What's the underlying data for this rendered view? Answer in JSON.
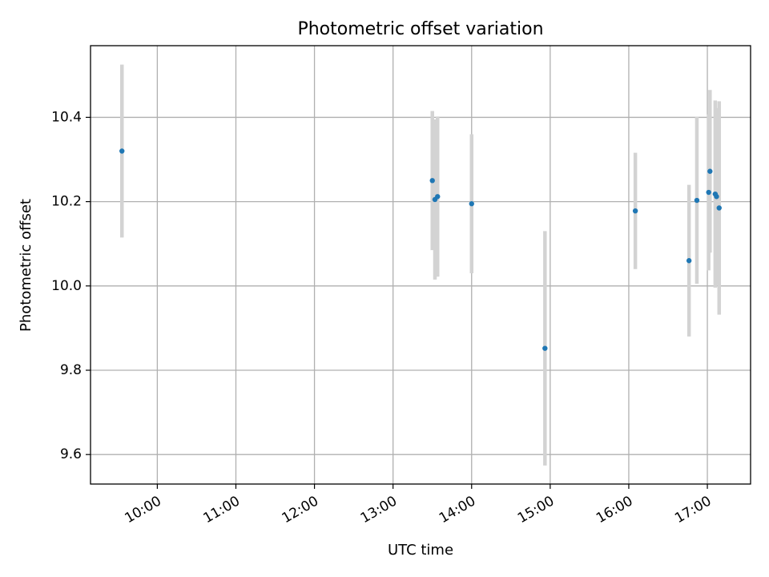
{
  "chart_data": {
    "type": "scatter",
    "title": "Photometric offset variation",
    "xlabel": "UTC time",
    "ylabel": "Photometric offset",
    "x_ticks": [
      "10:00",
      "11:00",
      "12:00",
      "13:00",
      "14:00",
      "15:00",
      "16:00",
      "17:00"
    ],
    "y_ticks": [
      "9.6",
      "9.8",
      "10.0",
      "10.2",
      "10.4"
    ],
    "xlim": [
      "09:09",
      "17:33"
    ],
    "ylim": [
      9.53,
      10.57
    ],
    "grid": true,
    "colors": {
      "point": "#1f77b4",
      "errorbar": "#d3d3d3"
    },
    "points": [
      {
        "x": "09:33",
        "y": 10.32,
        "yerr": 0.205
      },
      {
        "x": "13:30",
        "y": 10.25,
        "yerr": 0.165
      },
      {
        "x": "13:32",
        "y": 10.205,
        "yerr": 0.19
      },
      {
        "x": "13:34",
        "y": 10.212,
        "yerr": 0.19
      },
      {
        "x": "14:00",
        "y": 10.195,
        "yerr": 0.165
      },
      {
        "x": "14:56",
        "y": 9.852,
        "yerr": 0.278
      },
      {
        "x": "16:05",
        "y": 10.178,
        "yerr": 0.138
      },
      {
        "x": "16:46",
        "y": 10.06,
        "yerr": 0.18
      },
      {
        "x": "16:52",
        "y": 10.203,
        "yerr": 0.198
      },
      {
        "x": "17:01",
        "y": 10.222,
        "yerr": 0.185
      },
      {
        "x": "17:02",
        "y": 10.272,
        "yerr": 0.193
      },
      {
        "x": "17:06",
        "y": 10.218,
        "yerr": 0.222
      },
      {
        "x": "17:07",
        "y": 10.212,
        "yerr": 0.21
      },
      {
        "x": "17:09",
        "y": 10.185,
        "yerr": 0.253
      }
    ]
  }
}
